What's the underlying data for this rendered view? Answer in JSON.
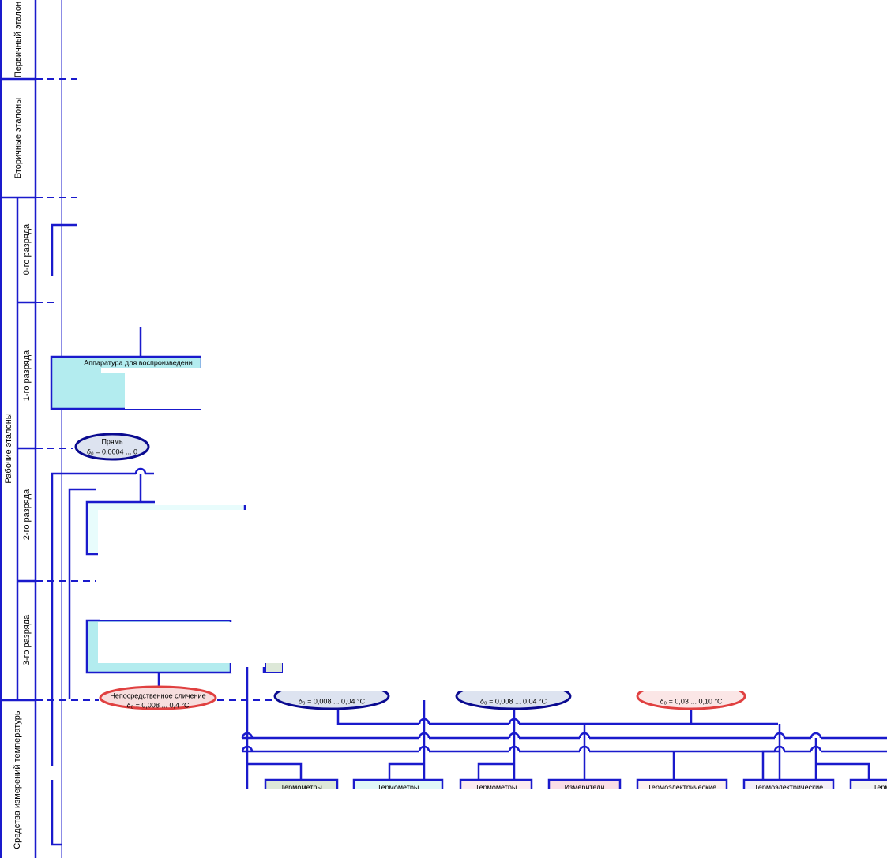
{
  "levels": {
    "primary": "Первичный эталон",
    "secondary": "Вторичные эталоны",
    "working": "Рабочие эталоны",
    "rank0": "0-го разряда",
    "rank1": "1-го разряда",
    "rank2": "2-го разряда",
    "rank3": "3-го разряда",
    "means": "Средства измерений температуры"
  },
  "nodes": [
    {
      "label": "Аппаратура для воспроизведени"
    },
    {
      "label": "Прямь",
      "accuracy": "δ₀ = 0,0004 ... 0"
    },
    {
      "label": "Непосредственное сличение",
      "accuracy": "δ₀ = 0,008 ... 0,4 °С"
    },
    {
      "accuracy": "δ₀ = 0,008 ... 0,04 °С"
    },
    {
      "accuracy": "δ₀ = 0,008 ... 0,04 °С"
    },
    {
      "accuracy": "δ₀ = 0,03 ... 0,10 °С"
    }
  ],
  "instruments": [
    "Термометры",
    "Термометры",
    "Термометры",
    "Измерители",
    "Термоэлектрические",
    "Термоэлектрические",
    "Термо"
  ]
}
